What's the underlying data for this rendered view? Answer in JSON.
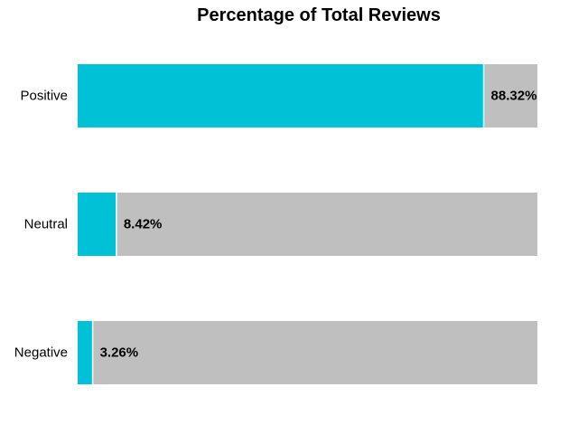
{
  "colors": {
    "filled": "#00c1d5",
    "remainder": "#bfbfbf",
    "divider": "#ffffff"
  },
  "chart_data": {
    "type": "bar",
    "orientation": "horizontal",
    "stacked": true,
    "title": "Percentage of Total Reviews",
    "xlabel": "",
    "ylabel": "",
    "xlim": [
      0,
      100
    ],
    "grid": false,
    "legend": "none",
    "categories": [
      "Positive",
      "Neutral",
      "Negative"
    ],
    "values": [
      88.32,
      8.42,
      3.26
    ],
    "value_labels": [
      "88.32%",
      "8.42%",
      "3.26%"
    ]
  }
}
